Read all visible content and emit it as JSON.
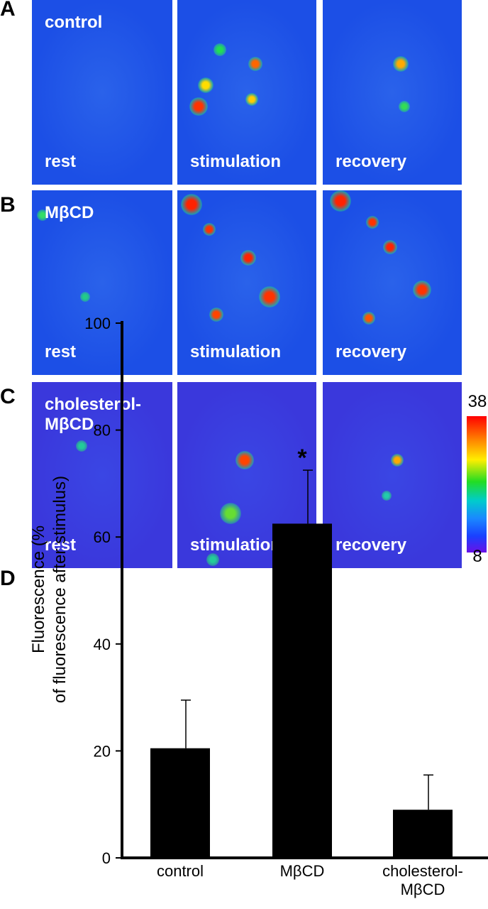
{
  "figure": {
    "panels": [
      {
        "label": "A",
        "condition": "control",
        "images": [
          "rest",
          "stimulation",
          "recovery"
        ]
      },
      {
        "label": "B",
        "condition": "MβCD",
        "images": [
          "rest",
          "stimulation",
          "recovery"
        ]
      },
      {
        "label": "C",
        "condition": "cholesterol-\nMβCD",
        "images": [
          "rest",
          "stimulation",
          "recovery"
        ]
      }
    ],
    "colorbar": {
      "max": 38,
      "min": 8
    }
  },
  "chart_data": {
    "type": "bar",
    "panel_label": "D",
    "ylabel": [
      "Fluorescence (%",
      "of fluorescence after stimulus)"
    ],
    "categories": [
      "control",
      "MβCD",
      "cholesterol-\nMβCD"
    ],
    "values": [
      20.5,
      62.5,
      9
    ],
    "errors": [
      9,
      10,
      6.5
    ],
    "significance": [
      null,
      "*",
      null
    ],
    "color": "#000000",
    "ylim": [
      0,
      100
    ],
    "yticks": [
      0,
      20,
      40,
      60,
      80,
      100
    ]
  }
}
